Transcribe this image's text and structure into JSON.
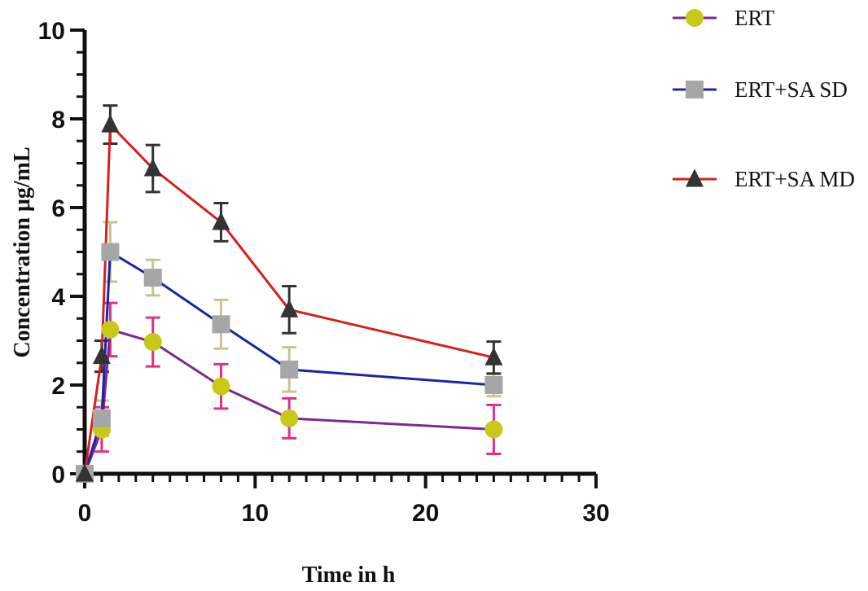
{
  "chart_data": {
    "type": "line",
    "title": "",
    "xlabel": "Time in h",
    "ylabel": "Concentration  μg/mL",
    "xlim": [
      0,
      30
    ],
    "ylim": [
      0,
      10
    ],
    "x_ticks": [
      "0",
      "10",
      "20",
      "30"
    ],
    "y_ticks": [
      "0",
      "2",
      "4",
      "6",
      "8",
      "10"
    ],
    "x_minor_step": 1,
    "y_minor_step": 0.5,
    "grid": false,
    "legend_position": "top-right",
    "x": [
      0,
      1,
      1.5,
      4,
      8,
      12,
      24
    ],
    "series": [
      {
        "name": "ERT",
        "marker": "circle",
        "line_color": "#7b2a8c",
        "marker_color": "#c8c81a",
        "error_color": "#e0308a",
        "values": [
          0,
          1.0,
          3.25,
          2.97,
          1.97,
          1.25,
          1.0
        ],
        "errors": [
          0,
          0.5,
          0.6,
          0.55,
          0.5,
          0.45,
          0.55
        ]
      },
      {
        "name": "ERT+SA SD",
        "marker": "square",
        "line_color": "#1c23a6",
        "marker_color": "#a6a6a6",
        "error_color": "#c8c48e",
        "values": [
          0,
          1.25,
          5.0,
          4.42,
          3.37,
          2.35,
          2.0
        ],
        "errors": [
          0,
          0.4,
          0.67,
          0.4,
          0.55,
          0.5,
          0.25
        ]
      },
      {
        "name": "ERT+SA MD",
        "marker": "triangle",
        "line_color": "#d61f1f",
        "marker_color": "#333333",
        "error_color": "#333333",
        "values": [
          0,
          2.65,
          7.87,
          6.88,
          5.67,
          3.7,
          2.62
        ],
        "errors": [
          0,
          0.35,
          0.43,
          0.53,
          0.43,
          0.53,
          0.36
        ]
      }
    ]
  }
}
